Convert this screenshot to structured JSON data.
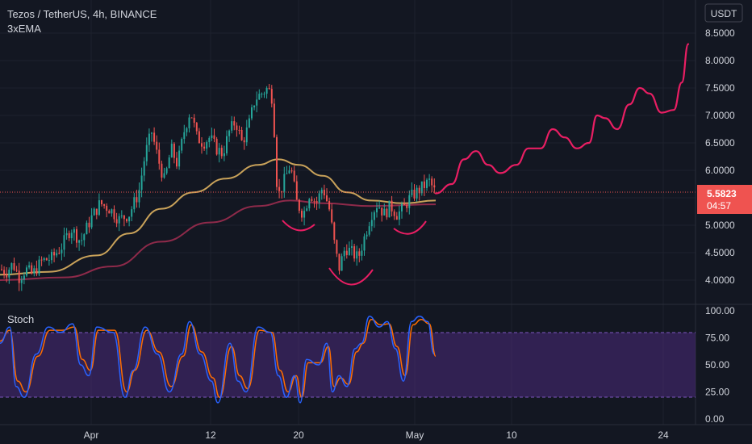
{
  "header": {
    "symbol_line": "Tezos / TetherUS, 4h, BINANCE",
    "indicator": "3xEMA",
    "currency_badge": "USDT"
  },
  "stoch_label": "Stoch",
  "price_axis": {
    "ticks": [
      "8.5000",
      "8.0000",
      "7.5000",
      "7.0000",
      "6.5000",
      "6.0000",
      "5.5000",
      "5.0000",
      "4.5000",
      "4.0000"
    ],
    "current_price": "5.5823",
    "countdown": "04:57"
  },
  "stoch_axis": {
    "ticks": [
      "100.00",
      "75.00",
      "50.00",
      "25.00",
      "0.00"
    ]
  },
  "time_axis": {
    "ticks": [
      "Apr",
      "12",
      "20",
      "May",
      "10",
      "24"
    ]
  },
  "colors": {
    "background": "#131722",
    "up": "#26a69a",
    "down": "#ef5350",
    "ema_fast": "#c9a25a",
    "ema_slow": "#8e2a4a",
    "drawing": "#e91e63",
    "stoch_k": "#2962ff",
    "stoch_d": "#ff6d00",
    "stoch_band": "#4a2a7a"
  },
  "chart_data": {
    "type": "candlestick",
    "symbol": "XTZ/USDT",
    "interval": "4h",
    "price_range": [
      3.75,
      8.75
    ],
    "current_price": 5.5823,
    "ohlc_path": [
      [
        0,
        4.2
      ],
      [
        8,
        4.15
      ],
      [
        16,
        4.3
      ],
      [
        24,
        4.05
      ],
      [
        32,
        4.2
      ],
      [
        40,
        4.1
      ],
      [
        52,
        4.35
      ],
      [
        64,
        4.4
      ],
      [
        76,
        4.6
      ],
      [
        88,
        4.95
      ],
      [
        100,
        4.7
      ],
      [
        112,
        5.1
      ],
      [
        124,
        5.4
      ],
      [
        136,
        5.3
      ],
      [
        148,
        5.1
      ],
      [
        160,
        5.2
      ],
      [
        172,
        5.6
      ],
      [
        180,
        6.3
      ],
      [
        188,
        6.7
      ],
      [
        196,
        6.2
      ],
      [
        204,
        5.8
      ],
      [
        212,
        6.4
      ],
      [
        220,
        6.1
      ],
      [
        228,
        6.7
      ],
      [
        236,
        7.1
      ],
      [
        244,
        6.6
      ],
      [
        252,
        6.5
      ],
      [
        260,
        6.6
      ],
      [
        268,
        6.4
      ],
      [
        276,
        6.3
      ],
      [
        284,
        6.7
      ],
      [
        292,
        6.9
      ],
      [
        300,
        6.5
      ],
      [
        308,
        6.8
      ],
      [
        316,
        7.3
      ],
      [
        324,
        7.4
      ],
      [
        332,
        7.5
      ],
      [
        338,
        7.3
      ],
      [
        344,
        5.5
      ],
      [
        352,
        5.8
      ],
      [
        360,
        6.1
      ],
      [
        368,
        5.4
      ],
      [
        376,
        5.2
      ],
      [
        384,
        5.6
      ],
      [
        392,
        5.4
      ],
      [
        400,
        5.7
      ],
      [
        408,
        5.3
      ],
      [
        414,
        4.7
      ],
      [
        420,
        4.2
      ],
      [
        428,
        4.6
      ],
      [
        436,
        4.5
      ],
      [
        444,
        4.4
      ],
      [
        452,
        4.8
      ],
      [
        460,
        5.2
      ],
      [
        468,
        5.4
      ],
      [
        476,
        5.2
      ],
      [
        484,
        5.35
      ],
      [
        492,
        5.2
      ],
      [
        500,
        5.3
      ],
      [
        508,
        5.5
      ],
      [
        516,
        5.6
      ],
      [
        524,
        5.7
      ],
      [
        532,
        5.8
      ],
      [
        540,
        5.58
      ]
    ],
    "ema_fast": [
      [
        0,
        4.1
      ],
      [
        60,
        4.15
      ],
      [
        120,
        4.45
      ],
      [
        160,
        4.85
      ],
      [
        200,
        5.3
      ],
      [
        240,
        5.6
      ],
      [
        280,
        5.85
      ],
      [
        320,
        6.1
      ],
      [
        345,
        6.2
      ],
      [
        370,
        6.1
      ],
      [
        400,
        5.9
      ],
      [
        430,
        5.6
      ],
      [
        460,
        5.45
      ],
      [
        500,
        5.4
      ],
      [
        540,
        5.45
      ]
    ],
    "ema_slow": [
      [
        0,
        4.0
      ],
      [
        80,
        4.05
      ],
      [
        140,
        4.25
      ],
      [
        200,
        4.7
      ],
      [
        260,
        5.05
      ],
      [
        320,
        5.35
      ],
      [
        360,
        5.45
      ],
      [
        400,
        5.4
      ],
      [
        460,
        5.35
      ],
      [
        540,
        5.38
      ]
    ],
    "drawing_projection": [
      [
        540,
        5.58
      ],
      [
        560,
        5.75
      ],
      [
        575,
        6.2
      ],
      [
        590,
        6.35
      ],
      [
        605,
        6.1
      ],
      [
        620,
        5.95
      ],
      [
        640,
        6.1
      ],
      [
        655,
        6.4
      ],
      [
        670,
        6.4
      ],
      [
        685,
        6.75
      ],
      [
        700,
        6.6
      ],
      [
        715,
        6.4
      ],
      [
        730,
        6.5
      ],
      [
        740,
        7.0
      ],
      [
        750,
        6.95
      ],
      [
        765,
        6.75
      ],
      [
        780,
        7.2
      ],
      [
        793,
        7.5
      ],
      [
        805,
        7.4
      ],
      [
        820,
        7.05
      ],
      [
        835,
        7.1
      ],
      [
        845,
        7.6
      ],
      [
        853,
        8.3
      ]
    ],
    "stoch": {
      "range": [
        0,
        100
      ],
      "upper_band": 80,
      "lower_band": 20,
      "k": [
        [
          0,
          70
        ],
        [
          12,
          85
        ],
        [
          20,
          30
        ],
        [
          30,
          20
        ],
        [
          45,
          60
        ],
        [
          60,
          85
        ],
        [
          75,
          80
        ],
        [
          90,
          88
        ],
        [
          100,
          50
        ],
        [
          110,
          40
        ],
        [
          120,
          85
        ],
        [
          140,
          80
        ],
        [
          155,
          20
        ],
        [
          165,
          45
        ],
        [
          180,
          85
        ],
        [
          195,
          60
        ],
        [
          210,
          25
        ],
        [
          225,
          60
        ],
        [
          235,
          90
        ],
        [
          248,
          60
        ],
        [
          262,
          35
        ],
        [
          270,
          15
        ],
        [
          285,
          70
        ],
        [
          295,
          35
        ],
        [
          305,
          25
        ],
        [
          320,
          85
        ],
        [
          335,
          80
        ],
        [
          345,
          40
        ],
        [
          355,
          20
        ],
        [
          365,
          40
        ],
        [
          372,
          15
        ],
        [
          380,
          55
        ],
        [
          395,
          50
        ],
        [
          405,
          70
        ],
        [
          412,
          25
        ],
        [
          420,
          40
        ],
        [
          430,
          30
        ],
        [
          440,
          65
        ],
        [
          448,
          70
        ],
        [
          458,
          95
        ],
        [
          470,
          85
        ],
        [
          480,
          90
        ],
        [
          490,
          65
        ],
        [
          500,
          35
        ],
        [
          510,
          90
        ],
        [
          520,
          95
        ],
        [
          530,
          90
        ],
        [
          538,
          60
        ]
      ],
      "d": [
        [
          0,
          72
        ],
        [
          12,
          82
        ],
        [
          22,
          35
        ],
        [
          32,
          25
        ],
        [
          47,
          58
        ],
        [
          62,
          82
        ],
        [
          77,
          82
        ],
        [
          92,
          85
        ],
        [
          102,
          55
        ],
        [
          112,
          45
        ],
        [
          122,
          82
        ],
        [
          142,
          82
        ],
        [
          157,
          25
        ],
        [
          167,
          45
        ],
        [
          182,
          82
        ],
        [
          197,
          62
        ],
        [
          212,
          30
        ],
        [
          227,
          58
        ],
        [
          237,
          87
        ],
        [
          250,
          62
        ],
        [
          264,
          38
        ],
        [
          272,
          20
        ],
        [
          287,
          67
        ],
        [
          297,
          40
        ],
        [
          307,
          28
        ],
        [
          322,
          82
        ],
        [
          337,
          80
        ],
        [
          347,
          45
        ],
        [
          357,
          25
        ],
        [
          367,
          40
        ],
        [
          374,
          20
        ],
        [
          382,
          52
        ],
        [
          397,
          52
        ],
        [
          407,
          67
        ],
        [
          414,
          30
        ],
        [
          422,
          38
        ],
        [
          432,
          32
        ],
        [
          442,
          62
        ],
        [
          450,
          70
        ],
        [
          460,
          92
        ],
        [
          472,
          87
        ],
        [
          482,
          88
        ],
        [
          492,
          67
        ],
        [
          502,
          40
        ],
        [
          512,
          87
        ],
        [
          522,
          92
        ],
        [
          532,
          88
        ],
        [
          540,
          58
        ]
      ]
    }
  }
}
